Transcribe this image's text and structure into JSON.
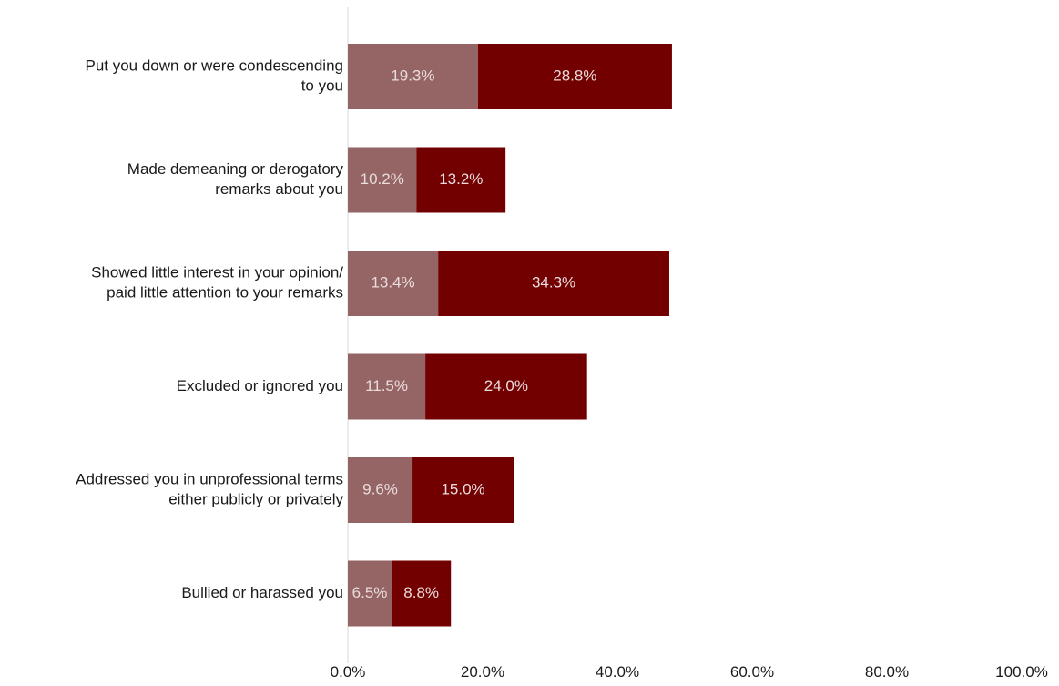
{
  "chart_data": {
    "type": "bar",
    "orientation": "horizontal",
    "stacked": true,
    "categories": [
      [
        "Put you down or were condescending",
        "to you"
      ],
      [
        "Made demeaning or derogatory",
        "remarks about you"
      ],
      [
        "Showed little interest in your opinion/",
        "paid little attention to your remarks"
      ],
      [
        "Excluded or ignored you"
      ],
      [
        "Addressed you in unprofessional terms",
        "either publicly or privately"
      ],
      [
        "Bullied or harassed you"
      ]
    ],
    "series": [
      {
        "color": "#956566",
        "values": [
          19.3,
          10.2,
          13.4,
          11.5,
          9.6,
          6.5
        ],
        "labels": [
          "19.3%",
          "10.2%",
          "13.4%",
          "11.5%",
          "9.6%",
          "6.5%"
        ]
      },
      {
        "color": "#730000",
        "values": [
          28.8,
          13.2,
          34.3,
          24.0,
          15.0,
          8.8
        ],
        "labels": [
          "28.8%",
          "13.2%",
          "34.3%",
          "24.0%",
          "15.0%",
          "8.8%"
        ]
      }
    ],
    "xlim": [
      0,
      100
    ],
    "xticks": [
      0,
      20,
      40,
      60,
      80,
      100
    ],
    "xtick_labels": [
      "0.0%",
      "20.0%",
      "40.0%",
      "60.0%",
      "80.0%",
      "100.0%"
    ],
    "title": "",
    "xlabel": "",
    "ylabel": "",
    "grid": false,
    "legend": "none"
  }
}
